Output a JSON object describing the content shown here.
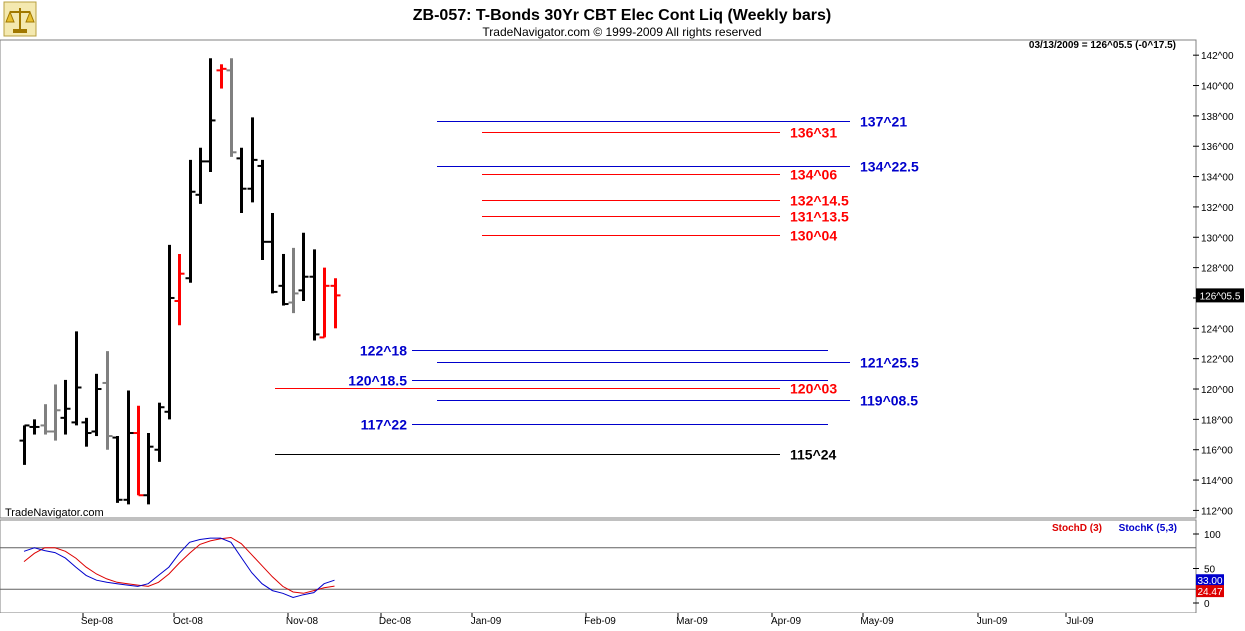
{
  "header": {
    "title": "ZB-057:  T-Bonds 30Yr CBT Elec Cont Liq  (Weekly bars)",
    "subtitle": "TradeNavigator.com © 1999-2009 All rights reserved",
    "info": "03/13/2009 = 126^05.5 (-0^17.5)",
    "watermark": "TradeNavigator.com",
    "logo_icon": "scales-icon"
  },
  "colors": {
    "up": "#000000",
    "down": "#ff0000",
    "inside": "#808080",
    "blue_level": "#0000cc",
    "red_level": "#ff0000",
    "black_level": "#000000",
    "stochD": "#dd0000",
    "stochK": "#0000cc",
    "current_price_box": "#000000",
    "title_bar": "#d4d0c8"
  },
  "chart_data": [
    {
      "type": "ohlc",
      "title": "ZB-057:  T-Bonds 30Yr CBT Elec Cont Liq  (Weekly bars)",
      "ylim": [
        111.5,
        143
      ],
      "y_ticks": [
        112,
        114,
        116,
        118,
        120,
        122,
        124,
        126,
        128,
        130,
        132,
        134,
        136,
        138,
        140,
        142
      ],
      "y_tick_labels": [
        "112^00",
        "114^00",
        "116^00",
        "118^00",
        "120^00",
        "122^00",
        "124^00",
        "126^00",
        "128^00",
        "130^00",
        "132^00",
        "134^00",
        "136^00",
        "138^00",
        "140^00",
        "142^00"
      ],
      "x_labels": [
        "Sep-08",
        "Oct-08",
        "Nov-08",
        "Dec-08",
        "Jan-09",
        "Feb-09",
        "Mar-09",
        "Apr-09",
        "May-09",
        "Jun-09",
        "Jul-09"
      ],
      "current_price_label": "126^05.5",
      "current_price": 126.17,
      "bars": [
        {
          "o": 116.6,
          "h": 117.6,
          "l": 115.0,
          "c": 117.6,
          "color": "up"
        },
        {
          "o": 117.5,
          "h": 118.0,
          "l": 117.0,
          "c": 117.5,
          "color": "up"
        },
        {
          "o": 117.6,
          "h": 119.0,
          "l": 117.0,
          "c": 117.2,
          "color": "inside"
        },
        {
          "o": 117.2,
          "h": 120.3,
          "l": 116.6,
          "c": 118.6,
          "color": "inside"
        },
        {
          "o": 118.1,
          "h": 120.6,
          "l": 117.0,
          "c": 118.7,
          "color": "up"
        },
        {
          "o": 117.8,
          "h": 123.8,
          "l": 117.6,
          "c": 120.1,
          "color": "up"
        },
        {
          "o": 117.8,
          "h": 118.1,
          "l": 116.2,
          "c": 117.1,
          "color": "up"
        },
        {
          "o": 117.2,
          "h": 121.0,
          "l": 116.9,
          "c": 120.0,
          "color": "up"
        },
        {
          "o": 120.4,
          "h": 122.5,
          "l": 116.0,
          "c": 116.9,
          "color": "inside"
        },
        {
          "o": 116.8,
          "h": 116.9,
          "l": 112.5,
          "c": 112.7,
          "color": "up"
        },
        {
          "o": 112.7,
          "h": 119.9,
          "l": 112.4,
          "c": 117.1,
          "color": "up"
        },
        {
          "o": 117.1,
          "h": 118.9,
          "l": 113.0,
          "c": 113.0,
          "color": "down"
        },
        {
          "o": 113.0,
          "h": 117.1,
          "l": 112.4,
          "c": 116.2,
          "color": "up"
        },
        {
          "o": 116.0,
          "h": 119.1,
          "l": 115.2,
          "c": 118.8,
          "color": "up"
        },
        {
          "o": 118.5,
          "h": 129.5,
          "l": 118.0,
          "c": 126.0,
          "color": "up"
        },
        {
          "o": 125.8,
          "h": 128.9,
          "l": 124.2,
          "c": 127.6,
          "color": "down"
        },
        {
          "o": 127.3,
          "h": 135.1,
          "l": 127.0,
          "c": 133.0,
          "color": "up"
        },
        {
          "o": 132.8,
          "h": 135.9,
          "l": 132.2,
          "c": 135.0,
          "color": "up"
        },
        {
          "o": 135.0,
          "h": 141.8,
          "l": 134.3,
          "c": 137.7,
          "color": "up"
        },
        {
          "o": 141.0,
          "h": 141.4,
          "l": 139.8,
          "c": 141.1,
          "color": "down"
        },
        {
          "o": 141.0,
          "h": 141.8,
          "l": 135.3,
          "c": 135.6,
          "color": "inside"
        },
        {
          "o": 135.2,
          "h": 135.9,
          "l": 131.6,
          "c": 133.2,
          "color": "up"
        },
        {
          "o": 133.2,
          "h": 137.9,
          "l": 132.3,
          "c": 135.1,
          "color": "up"
        },
        {
          "o": 134.7,
          "h": 135.1,
          "l": 128.5,
          "c": 129.7,
          "color": "up"
        },
        {
          "o": 129.7,
          "h": 131.6,
          "l": 126.3,
          "c": 126.4,
          "color": "up"
        },
        {
          "o": 126.8,
          "h": 128.9,
          "l": 125.5,
          "c": 125.6,
          "color": "up"
        },
        {
          "o": 125.7,
          "h": 129.3,
          "l": 125.0,
          "c": 126.3,
          "color": "inside"
        },
        {
          "o": 126.5,
          "h": 130.3,
          "l": 125.8,
          "c": 127.4,
          "color": "up"
        },
        {
          "o": 127.4,
          "h": 129.2,
          "l": 123.2,
          "c": 123.6,
          "color": "up"
        },
        {
          "o": 123.4,
          "h": 128.0,
          "l": 123.4,
          "c": 126.8,
          "color": "down"
        },
        {
          "o": 126.8,
          "h": 127.3,
          "l": 124.0,
          "c": 126.17,
          "color": "down"
        }
      ],
      "levels": [
        {
          "price": 137.66,
          "label": "137^21",
          "color": "blue",
          "side": "right"
        },
        {
          "price": 136.97,
          "label": "136^31",
          "color": "red",
          "side": "right"
        },
        {
          "price": 134.7,
          "label": "134^22.5",
          "color": "blue",
          "side": "right"
        },
        {
          "price": 134.19,
          "label": "134^06",
          "color": "red",
          "side": "right"
        },
        {
          "price": 132.45,
          "label": "132^14.5",
          "color": "red",
          "side": "right"
        },
        {
          "price": 131.42,
          "label": "131^13.5",
          "color": "red",
          "side": "right"
        },
        {
          "price": 130.13,
          "label": "130^04",
          "color": "red",
          "side": "right"
        },
        {
          "price": 122.56,
          "label": "122^18",
          "color": "blue",
          "side": "left"
        },
        {
          "price": 121.8,
          "label": "121^25.5",
          "color": "blue",
          "side": "right"
        },
        {
          "price": 120.58,
          "label": "120^18.5",
          "color": "blue",
          "side": "left"
        },
        {
          "price": 120.09,
          "label": "120^03",
          "color": "red",
          "side": "right"
        },
        {
          "price": 119.27,
          "label": "119^08.5",
          "color": "blue",
          "side": "right"
        },
        {
          "price": 117.69,
          "label": "117^22",
          "color": "blue",
          "side": "left"
        },
        {
          "price": 115.75,
          "label": "115^24",
          "color": "black",
          "side": "right"
        }
      ]
    },
    {
      "type": "line",
      "legend": [
        "StochD (3)",
        "StochK (5,3)"
      ],
      "ylim": [
        0,
        100
      ],
      "y_ticks": [
        0,
        50,
        100
      ],
      "y_tick_labels": [
        "0",
        "50",
        "100"
      ],
      "guide_lines": [
        20,
        80
      ],
      "last_value_label_D": "24.47",
      "last_value_label_K": "33.00",
      "x": [
        0,
        1,
        2,
        3,
        4,
        5,
        6,
        7,
        8,
        9,
        10,
        11,
        12,
        13,
        14,
        15,
        16,
        17,
        18,
        19,
        20,
        21,
        22,
        23,
        24,
        25,
        26,
        27,
        28,
        29,
        30
      ],
      "series": [
        {
          "name": "StochD (3)",
          "color": "stochD",
          "values": [
            60,
            72,
            80,
            80,
            75,
            65,
            52,
            42,
            35,
            30,
            28,
            26,
            24,
            30,
            42,
            58,
            72,
            85,
            90,
            93,
            95,
            86,
            70,
            54,
            38,
            24,
            16,
            14,
            18,
            22,
            24.47
          ]
        },
        {
          "name": "StochK (5,3)",
          "color": "stochK",
          "values": [
            75,
            80,
            76,
            73,
            65,
            52,
            40,
            33,
            30,
            28,
            26,
            24,
            28,
            40,
            52,
            72,
            88,
            92,
            94,
            94,
            88,
            66,
            44,
            28,
            18,
            14,
            8,
            12,
            15,
            28,
            33
          ]
        }
      ]
    }
  ]
}
